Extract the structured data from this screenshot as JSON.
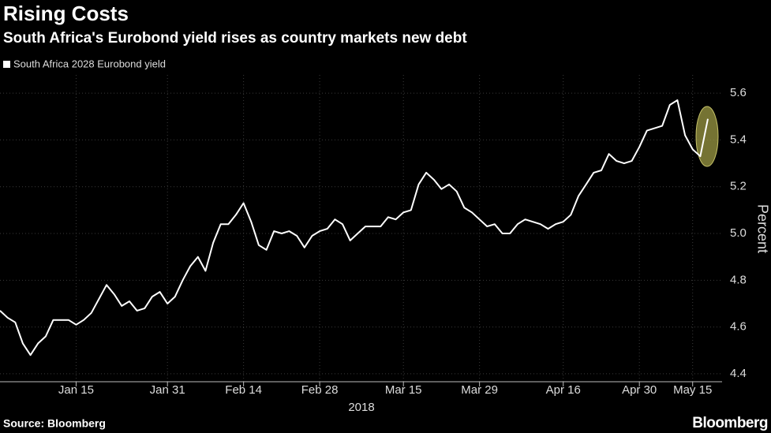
{
  "chart_data": {
    "type": "line",
    "title": "Rising Costs",
    "subtitle": "South Africa's Eurobond yield rises as country markets new debt",
    "y_axis_label": "Percent",
    "x_axis_label": "2018",
    "source": "Source: Bloomberg",
    "brand": "Bloomberg",
    "categories": [
      null,
      null,
      null,
      null,
      null,
      null,
      null,
      null,
      null,
      null,
      "Jan 15",
      null,
      null,
      null,
      null,
      null,
      null,
      null,
      null,
      null,
      null,
      null,
      "Jan 31",
      null,
      null,
      null,
      null,
      null,
      null,
      null,
      null,
      null,
      "Feb 14",
      null,
      null,
      null,
      null,
      null,
      null,
      null,
      null,
      null,
      "Feb 28",
      null,
      null,
      null,
      null,
      null,
      null,
      null,
      null,
      null,
      null,
      "Mar 15",
      null,
      null,
      null,
      null,
      null,
      null,
      null,
      null,
      null,
      "Mar 29",
      null,
      null,
      null,
      null,
      null,
      null,
      null,
      null,
      null,
      null,
      "Apr 16",
      null,
      null,
      null,
      null,
      null,
      null,
      null,
      null,
      null,
      "Apr 30",
      null,
      null,
      null,
      null,
      null,
      null,
      "May 15",
      null,
      null
    ],
    "series": [
      {
        "name": "South Africa 2028 Eurobond yield",
        "color": "#ffffff",
        "values": [
          4.67,
          4.64,
          4.62,
          4.53,
          4.48,
          4.53,
          4.56,
          4.63,
          4.63,
          4.63,
          4.61,
          4.63,
          4.66,
          4.72,
          4.78,
          4.74,
          4.69,
          4.71,
          4.67,
          4.68,
          4.73,
          4.75,
          4.7,
          4.73,
          4.8,
          4.86,
          4.9,
          4.84,
          4.96,
          5.04,
          5.04,
          5.08,
          5.13,
          5.05,
          4.95,
          4.93,
          5.01,
          5.0,
          5.01,
          4.99,
          4.94,
          4.99,
          5.01,
          5.02,
          5.06,
          5.04,
          4.97,
          5.0,
          5.03,
          5.03,
          5.03,
          5.07,
          5.06,
          5.09,
          5.1,
          5.21,
          5.26,
          5.23,
          5.19,
          5.21,
          5.18,
          5.11,
          5.09,
          5.06,
          5.03,
          5.04,
          5.0,
          5.0,
          5.04,
          5.06,
          5.05,
          5.04,
          5.02,
          5.04,
          5.05,
          5.08,
          5.16,
          5.21,
          5.26,
          5.27,
          5.34,
          5.31,
          5.3,
          5.31,
          5.37,
          5.44,
          5.45,
          5.46,
          5.55,
          5.57,
          5.42,
          5.36,
          5.33,
          5.49
        ]
      }
    ],
    "ylim": [
      4.366,
      5.678
    ],
    "yticks": [
      {
        "value": 4.4,
        "label": "4.4"
      },
      {
        "value": 4.6,
        "label": "4.6"
      },
      {
        "value": 4.8,
        "label": "4.8"
      },
      {
        "value": 5.0,
        "label": "5.0"
      },
      {
        "value": 5.2,
        "label": "5.2"
      },
      {
        "value": 5.4,
        "label": "5.4"
      },
      {
        "value": 5.6,
        "label": "5.6"
      }
    ],
    "grid": true,
    "legend": "top-left"
  }
}
